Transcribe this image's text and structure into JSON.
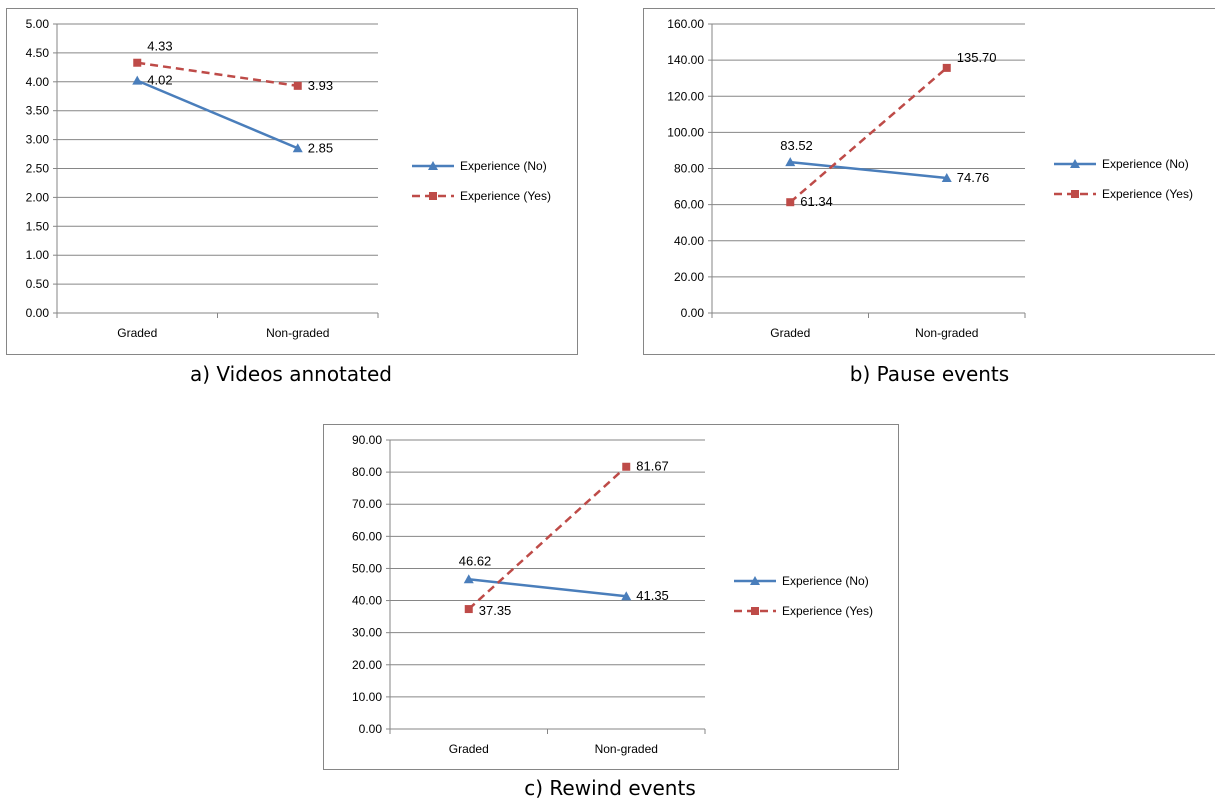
{
  "colors": {
    "series_no": "#4a7ebb",
    "series_yes": "#be4b48",
    "grid": "#868686"
  },
  "panels": [
    {
      "caption": "a) Videos annotated"
    },
    {
      "caption": "b) Pause events"
    },
    {
      "caption": "c) Rewind events"
    }
  ],
  "chart_data": [
    {
      "type": "line",
      "title": "",
      "categories": [
        "Graded",
        "Non-graded"
      ],
      "ylim": [
        0,
        5
      ],
      "ytick_step": 0.5,
      "ytick_decimals": 2,
      "grid": true,
      "legend": "right",
      "series": [
        {
          "name": "Experience (No)",
          "values": [
            4.02,
            2.85
          ],
          "labels": [
            "4.02",
            "2.85"
          ],
          "marker": "triangle",
          "dash": "solid"
        },
        {
          "name": "Experience (Yes)",
          "values": [
            4.33,
            3.93
          ],
          "labels": [
            "4.33",
            "3.93"
          ],
          "marker": "square",
          "dash": "dashed"
        }
      ]
    },
    {
      "type": "line",
      "title": "",
      "categories": [
        "Graded",
        "Non-graded"
      ],
      "ylim": [
        0,
        160
      ],
      "ytick_step": 20,
      "ytick_decimals": 2,
      "grid": true,
      "legend": "right",
      "series": [
        {
          "name": "Experience (No)",
          "values": [
            83.52,
            74.76
          ],
          "labels": [
            "83.52",
            "74.76"
          ],
          "marker": "triangle",
          "dash": "solid"
        },
        {
          "name": "Experience (Yes)",
          "values": [
            61.34,
            135.7
          ],
          "labels": [
            "61.34",
            "135.70"
          ],
          "marker": "square",
          "dash": "dashed"
        }
      ]
    },
    {
      "type": "line",
      "title": "",
      "categories": [
        "Graded",
        "Non-graded"
      ],
      "ylim": [
        0,
        90
      ],
      "ytick_step": 10,
      "ytick_decimals": 2,
      "grid": true,
      "legend": "right",
      "series": [
        {
          "name": "Experience (No)",
          "values": [
            46.62,
            41.35
          ],
          "labels": [
            "46.62",
            "41.35"
          ],
          "marker": "triangle",
          "dash": "solid"
        },
        {
          "name": "Experience (Yes)",
          "values": [
            37.35,
            81.67
          ],
          "labels": [
            "37.35",
            "81.67"
          ],
          "marker": "square",
          "dash": "dashed"
        }
      ]
    }
  ]
}
